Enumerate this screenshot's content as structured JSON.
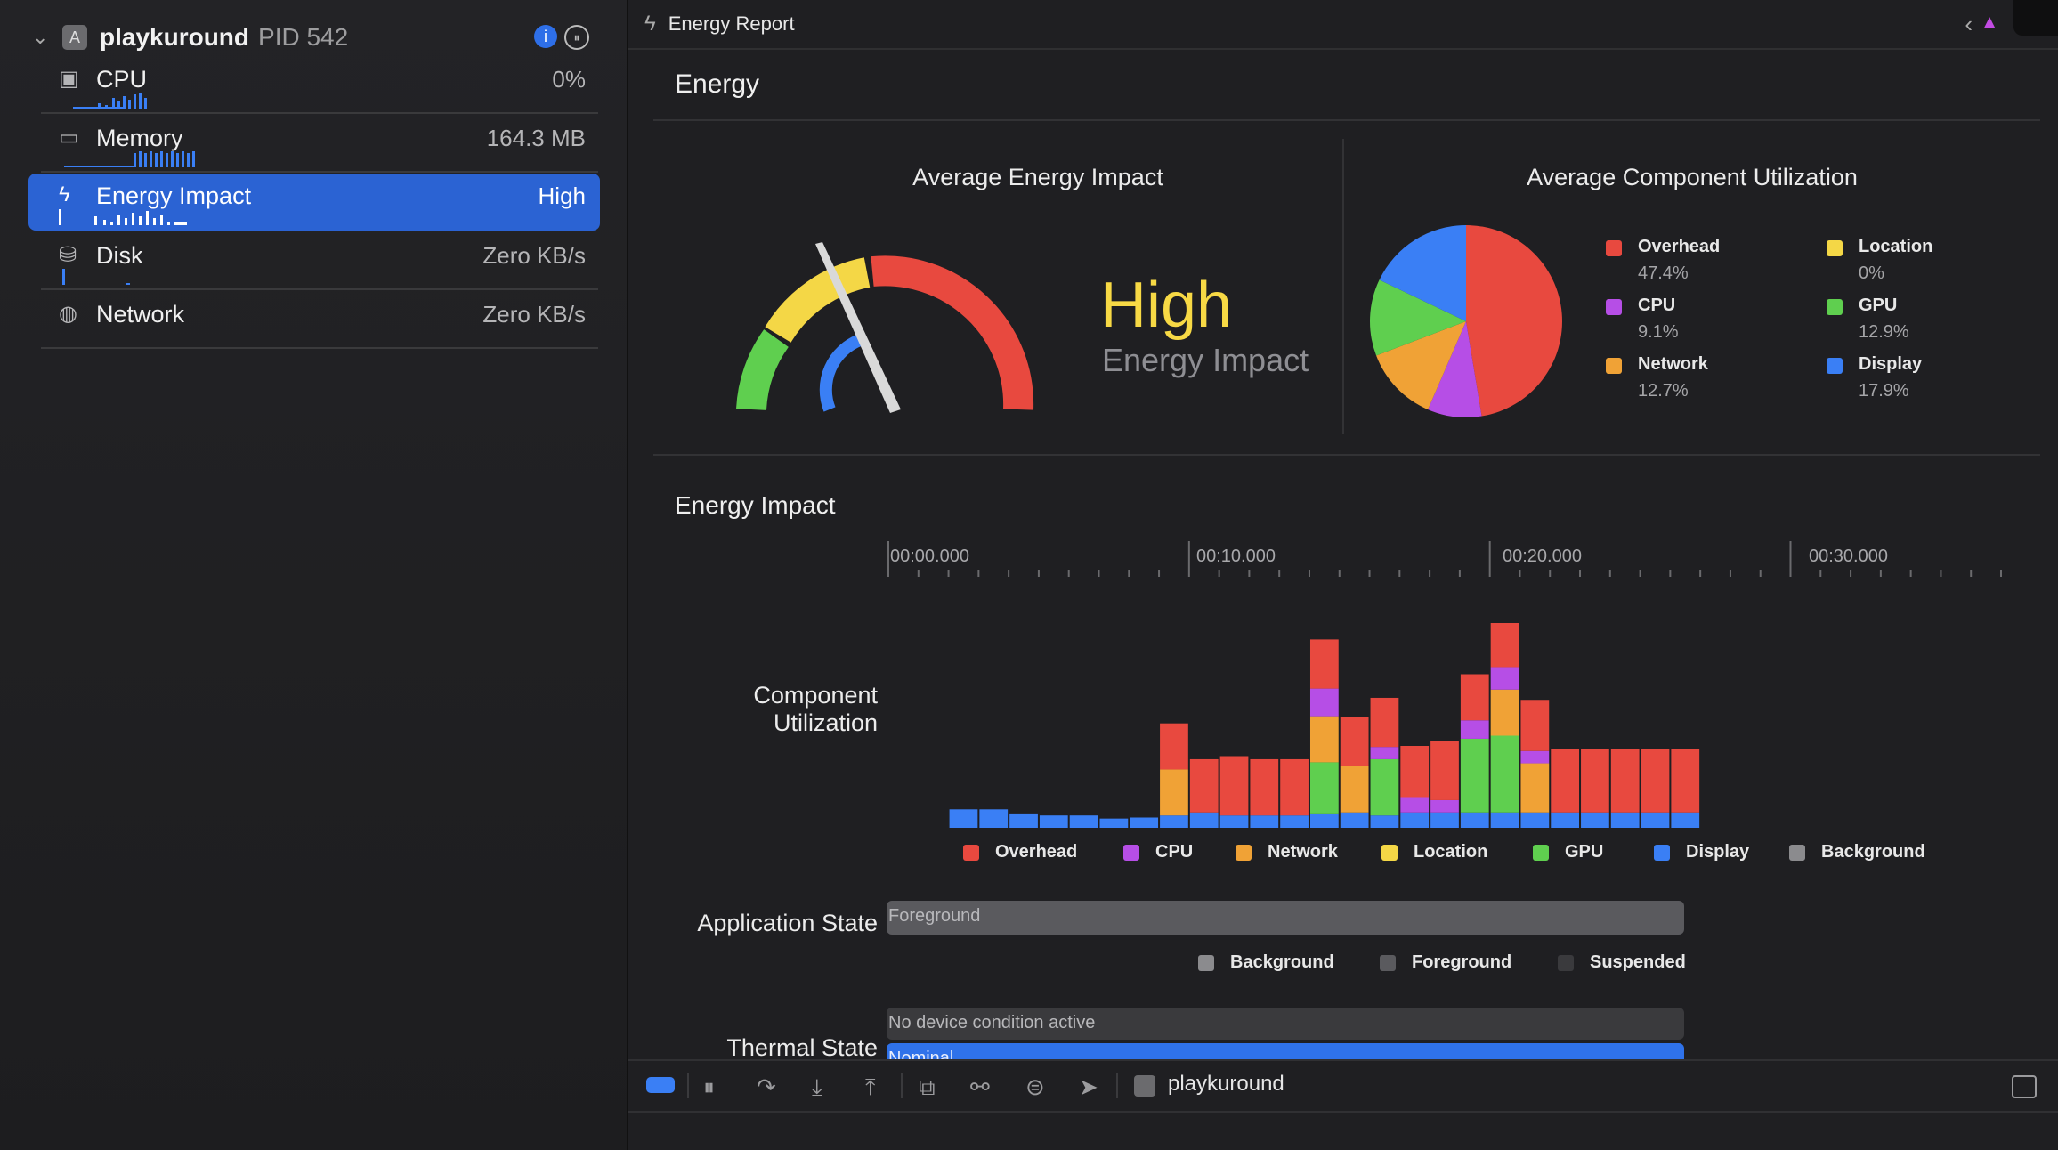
{
  "colors": {
    "overhead": "#e8493f",
    "cpu": "#b64ee6",
    "network": "#f0a236",
    "location": "#f4d746",
    "gpu": "#5fcf4f",
    "display": "#3a7ff5",
    "background": "#8b8b8e",
    "foreground": "#5a5a5e",
    "suspended": "#3a3a3d",
    "selection": "#2b63d3"
  },
  "sidebar": {
    "process_name": "playkuround",
    "process_pid": "PID 542",
    "gauges": [
      {
        "label": "CPU",
        "value": "0%",
        "icon": "cpu-chip-icon"
      },
      {
        "label": "Memory",
        "value": "164.3 MB",
        "icon": "memory-icon"
      },
      {
        "label": "Energy Impact",
        "value": "High",
        "icon": "bolt-icon"
      },
      {
        "label": "Disk",
        "value": "Zero KB/s",
        "icon": "disk-icon"
      },
      {
        "label": "Network",
        "value": "Zero KB/s",
        "icon": "globe-icon"
      }
    ]
  },
  "topbar": {
    "title": "Energy Report"
  },
  "energy": {
    "section_title": "Energy",
    "avg_impact_title": "Average Energy Impact",
    "impact_level": "High",
    "impact_sub": "Energy Impact",
    "gauge_needle_fraction": 0.28,
    "avg_component_title": "Average Component Utilization",
    "components": [
      {
        "name": "Overhead",
        "value": "47.4%",
        "color_key": "overhead",
        "pct": 47.4
      },
      {
        "name": "Location",
        "value": "0%",
        "color_key": "location",
        "pct": 0
      },
      {
        "name": "CPU",
        "value": "9.1%",
        "color_key": "cpu",
        "pct": 9.1
      },
      {
        "name": "GPU",
        "value": "12.9%",
        "color_key": "gpu",
        "pct": 12.9
      },
      {
        "name": "Network",
        "value": "12.7%",
        "color_key": "network",
        "pct": 12.7
      },
      {
        "name": "Display",
        "value": "17.9%",
        "color_key": "display",
        "pct": 17.9
      }
    ]
  },
  "timeline": {
    "section_title": "Energy Impact",
    "ticks": [
      "00:00.000",
      "00:10.000",
      "00:20.000",
      "00:30.000"
    ],
    "component_label_line1": "Component",
    "component_label_line2": "Utilization",
    "app_state_label": "Application State",
    "thermal_label": "Thermal State",
    "app_state_value": "Foreground",
    "thermal_condition_text": "No device condition active",
    "thermal_value": "Nominal",
    "bar_legend": [
      {
        "name": "Overhead",
        "color_key": "overhead"
      },
      {
        "name": "CPU",
        "color_key": "cpu"
      },
      {
        "name": "Network",
        "color_key": "network"
      },
      {
        "name": "Location",
        "color_key": "location"
      },
      {
        "name": "GPU",
        "color_key": "gpu"
      },
      {
        "name": "Display",
        "color_key": "display"
      },
      {
        "name": "Background",
        "color_key": "background"
      }
    ],
    "state_legend": [
      {
        "name": "Background",
        "color_key": "background"
      },
      {
        "name": "Foreground",
        "color_key": "foreground"
      },
      {
        "name": "Suspended",
        "color_key": "suspended"
      }
    ]
  },
  "chart_data": {
    "type": "bar",
    "stacked": true,
    "x_unit": "seconds",
    "categories": [
      2.5,
      3.5,
      4.5,
      5.5,
      6.5,
      7.5,
      8.5,
      9.5,
      10.5,
      11.5,
      12.5,
      13.5,
      14.5,
      15.5,
      16.5,
      17.5,
      18.5,
      19.5,
      20.5,
      21.5,
      22.5,
      23.5,
      24.5,
      25.5,
      26.5
    ],
    "series": [
      {
        "name": "Display",
        "values": [
          18,
          18,
          14,
          12,
          12,
          9,
          10,
          12,
          15,
          12,
          12,
          12,
          14,
          15,
          12,
          15,
          15,
          15,
          15,
          15,
          15,
          15,
          15,
          15,
          15
        ]
      },
      {
        "name": "GPU",
        "values": [
          0,
          0,
          0,
          0,
          0,
          0,
          0,
          0,
          0,
          0,
          0,
          0,
          50,
          0,
          55,
          0,
          0,
          72,
          75,
          0,
          0,
          0,
          0,
          0,
          0
        ]
      },
      {
        "name": "Network",
        "values": [
          0,
          0,
          0,
          0,
          0,
          0,
          0,
          45,
          0,
          0,
          0,
          0,
          45,
          45,
          0,
          0,
          0,
          0,
          45,
          48,
          0,
          0,
          0,
          0,
          0
        ]
      },
      {
        "name": "CPU",
        "values": [
          0,
          0,
          0,
          0,
          0,
          0,
          0,
          0,
          0,
          0,
          0,
          0,
          27,
          0,
          12,
          15,
          12,
          18,
          22,
          12,
          0,
          0,
          0,
          0,
          0
        ]
      },
      {
        "name": "Overhead",
        "values": [
          0,
          0,
          0,
          0,
          0,
          0,
          0,
          45,
          52,
          58,
          55,
          55,
          48,
          48,
          48,
          50,
          58,
          45,
          45,
          50,
          62,
          62,
          62,
          62,
          62
        ]
      }
    ],
    "xlim": [
      0,
      37
    ],
    "ylim": [
      0,
      200
    ],
    "legend": [
      "Overhead",
      "CPU",
      "Network",
      "Location",
      "GPU",
      "Display",
      "Background"
    ]
  }
}
